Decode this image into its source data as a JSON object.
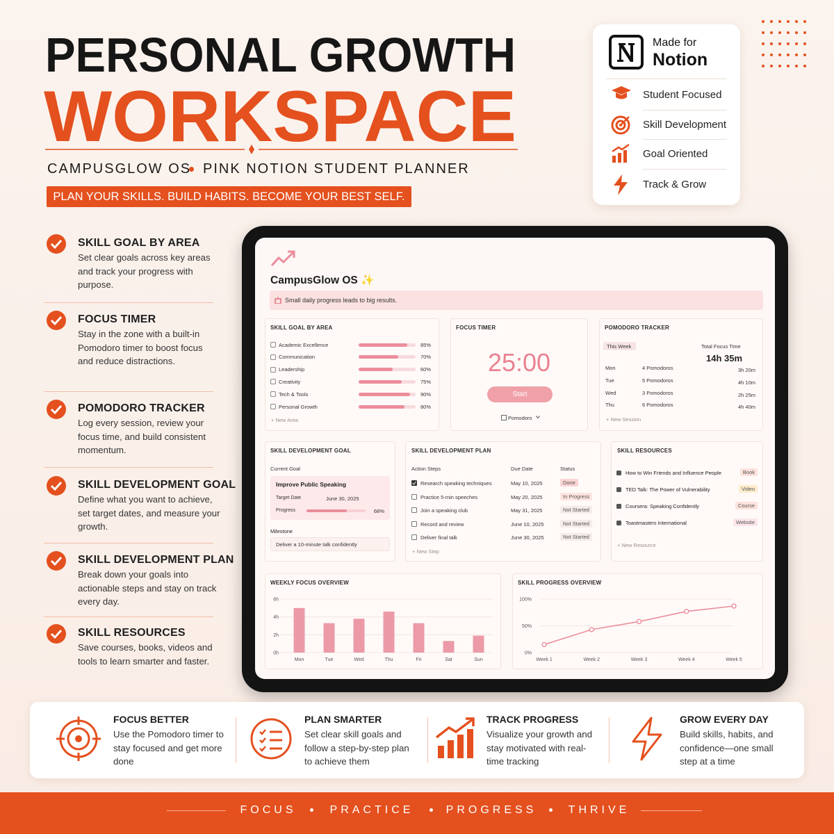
{
  "header": {
    "title_line1": "PERSONAL GROWTH",
    "title_line2": "WORKSPACE",
    "subtitle_left": "CAMPUSGLOW OS",
    "subtitle_right": "PINK NOTION STUDENT PLANNER",
    "tagline": "PLAN YOUR SKILLS. BUILD HABITS. BECOME YOUR BEST SELF."
  },
  "badge": {
    "made_for": "Made for",
    "notion": "Notion",
    "items": [
      "Student Focused",
      "Skill Development",
      "Goal Oriented",
      "Track & Grow"
    ]
  },
  "features": [
    {
      "title": "SKILL GOAL BY AREA",
      "text": "Set clear goals across key areas and track your progress with purpose."
    },
    {
      "title": "FOCUS TIMER",
      "text": "Stay in the zone with a built-in Pomodoro timer to boost focus and reduce distractions."
    },
    {
      "title": "POMODORO TRACKER",
      "text": "Log every session, review your focus time, and build consistent momentum."
    },
    {
      "title": "SKILL DEVELOPMENT GOAL",
      "text": "Define what you want to achieve, set target dates, and measure your growth."
    },
    {
      "title": "SKILL DEVELOPMENT PLAN",
      "text": "Break down your goals into actionable steps and stay on track every day."
    },
    {
      "title": "SKILL RESOURCES",
      "text": "Save courses, books, videos and tools to learn smarter and faster."
    }
  ],
  "app": {
    "title": "CampusGlow OS ✨",
    "banner": "Small daily progress leads to big results.",
    "skill_goal": {
      "title": "SKILL GOAL BY AREA",
      "names": [
        "Academic Excellence",
        "Communication",
        "Leadership",
        "Creativity",
        "Tech & Tools",
        "Personal Growth"
      ],
      "values": [
        85,
        70,
        60,
        75,
        90,
        80
      ],
      "value_labels": [
        "85%",
        "70%",
        "60%",
        "75%",
        "90%",
        "80%"
      ],
      "add": "+ New Area"
    },
    "focus_timer": {
      "title": "FOCUS TIMER",
      "time": "25:00",
      "button": "Start",
      "mode": "Pomodoro"
    },
    "pomodoro": {
      "title": "POMODORO TRACKER",
      "period": "This Week",
      "total_label": "Total Focus Time",
      "total": "14h 35m",
      "rows": [
        [
          "Mon",
          "4 Pomodoros",
          "3h 20m"
        ],
        [
          "Tue",
          "5 Pomodoros",
          "4h 10m"
        ],
        [
          "Wed",
          "3 Pomodoros",
          "2h 25m"
        ],
        [
          "Thu",
          "6 Pomodoros",
          "4h 40m"
        ]
      ],
      "add": "+ New Session"
    },
    "dev_goal": {
      "title": "SKILL DEVELOPMENT GOAL",
      "current_label": "Current Goal",
      "goal": "Improve Public Speaking",
      "target_label": "Target Date",
      "target": "June 30, 2025",
      "progress_label": "Progress",
      "progress": {
        "value": 68,
        "label": "68%"
      },
      "milestone_label": "Milestone",
      "milestone": "Deliver a 10-minute talk confidently"
    },
    "plan": {
      "title": "SKILL DEVELOPMENT PLAN",
      "headers": [
        "Action Steps",
        "Due Date",
        "Status"
      ],
      "rows": [
        {
          "step": "Research speaking techniques",
          "date": "May 10, 2025",
          "status": "Done",
          "checked": true
        },
        {
          "step": "Practice 5-min speeches",
          "date": "May 20, 2025",
          "status": "In Progress",
          "checked": false
        },
        {
          "step": "Join a speaking club",
          "date": "May 31, 2025",
          "status": "Not Started",
          "checked": false
        },
        {
          "step": "Record and review",
          "date": "June 10, 2025",
          "status": "Not Started",
          "checked": false
        },
        {
          "step": "Deliver final talk",
          "date": "June 30, 2025",
          "status": "Not Started",
          "checked": false
        }
      ],
      "add": "+ New Step"
    },
    "resources": {
      "title": "SKILL RESOURCES",
      "rows": [
        [
          "How to Win Friends and Influence People",
          "Book"
        ],
        [
          "TED Talk: The Power of Vulnerability",
          "Video"
        ],
        [
          "Coursera: Speaking Confidently",
          "Course"
        ],
        [
          "Toastmasters International",
          "Website"
        ]
      ],
      "add": "+ New Resource"
    },
    "weekly_focus": {
      "type": "bar",
      "title": "WEEKLY FOCUS OVERVIEW",
      "categories": [
        "Mon",
        "Tue",
        "Wed",
        "Thu",
        "Fri",
        "Sat",
        "Sun"
      ],
      "values": [
        5,
        3.3,
        3.8,
        4.6,
        3.3,
        1.3,
        1.9
      ],
      "color": "#ec9aa8",
      "ylim": [
        0,
        6
      ],
      "yticks": [
        {
          "value": 0,
          "label": "0h"
        },
        {
          "value": 2,
          "label": "2h"
        },
        {
          "value": 4,
          "label": "4h"
        },
        {
          "value": 6,
          "label": "6h"
        }
      ],
      "grid": true
    },
    "skill_progress": {
      "type": "line",
      "title": "SKILL PROGRESS OVERVIEW",
      "categories": [
        "Week 1",
        "Week 2",
        "Week 3",
        "Week 4",
        "Week 5"
      ],
      "values": [
        15,
        43,
        58,
        77,
        87
      ],
      "color": "#ec8d9c",
      "ylim": [
        0,
        100
      ],
      "yticks": [
        {
          "value": 0,
          "label": "0%"
        },
        {
          "value": 50,
          "label": "50%"
        },
        {
          "value": 100,
          "label": "100%"
        }
      ],
      "grid": true
    }
  },
  "benefits": [
    {
      "title": "FOCUS BETTER",
      "text": "Use the Pomodoro timer to stay focused and get more done"
    },
    {
      "title": "PLAN SMARTER",
      "text": "Set clear skill goals and follow a step-by-step plan to achieve them"
    },
    {
      "title": "TRACK PROGRESS",
      "text": "Visualize your growth and stay motivated with real-time tracking"
    },
    {
      "title": "GROW EVERY DAY",
      "text": "Build skills, habits, and confidence—one small step at a time"
    }
  ],
  "footer": {
    "words": [
      "FOCUS",
      "PRACTICE",
      "PROGRESS",
      "THRIVE"
    ]
  }
}
